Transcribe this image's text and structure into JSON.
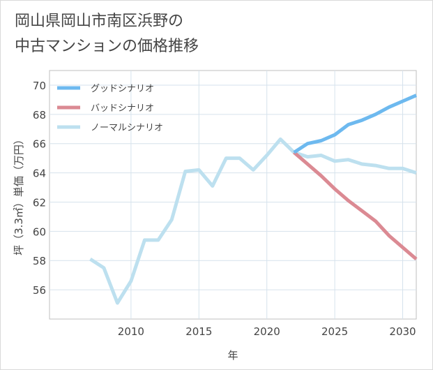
{
  "title": {
    "line1": "岡山県岡山市南区浜野の",
    "line2": "中古マンションの価格推移"
  },
  "chart_data": {
    "type": "line",
    "title": "岡山県岡山市南区浜野の中古マンションの価格推移",
    "xlabel": "年",
    "ylabel": "坪（3.3㎡）単価（万円）",
    "xlim": [
      2004,
      2031
    ],
    "ylim": [
      54,
      71
    ],
    "xticks": [
      2010,
      2015,
      2020,
      2025,
      2030
    ],
    "yticks": [
      56,
      58,
      60,
      62,
      64,
      66,
      68,
      70
    ],
    "grid": true,
    "legend_position": "top-left",
    "series": [
      {
        "name": "グッドシナリオ",
        "color": "#6db9ef",
        "x": [
          2022,
          2023,
          2024,
          2025,
          2026,
          2027,
          2028,
          2029,
          2030,
          2031
        ],
        "y": [
          65.4,
          66.0,
          66.2,
          66.6,
          67.3,
          67.6,
          68.0,
          68.5,
          68.9,
          69.3
        ]
      },
      {
        "name": "バッドシナリオ",
        "color": "#db8a93",
        "x": [
          2022,
          2023,
          2024,
          2025,
          2026,
          2027,
          2028,
          2029,
          2030,
          2031
        ],
        "y": [
          65.4,
          64.6,
          63.8,
          62.9,
          62.1,
          61.4,
          60.7,
          59.7,
          58.9,
          58.1
        ]
      },
      {
        "name": "ノーマルシナリオ",
        "color": "#bde0ef",
        "x": [
          2007,
          2008,
          2009,
          2010,
          2011,
          2012,
          2013,
          2014,
          2015,
          2016,
          2017,
          2018,
          2019,
          2020,
          2021,
          2022,
          2023,
          2024,
          2025,
          2026,
          2027,
          2028,
          2029,
          2030,
          2031
        ],
        "y": [
          58.1,
          57.5,
          55.1,
          56.6,
          59.4,
          59.4,
          60.8,
          64.1,
          64.2,
          63.1,
          65.0,
          65.0,
          64.2,
          65.2,
          66.3,
          65.4,
          65.1,
          65.2,
          64.8,
          64.9,
          64.6,
          64.5,
          64.3,
          64.3,
          64.0
        ]
      }
    ]
  }
}
